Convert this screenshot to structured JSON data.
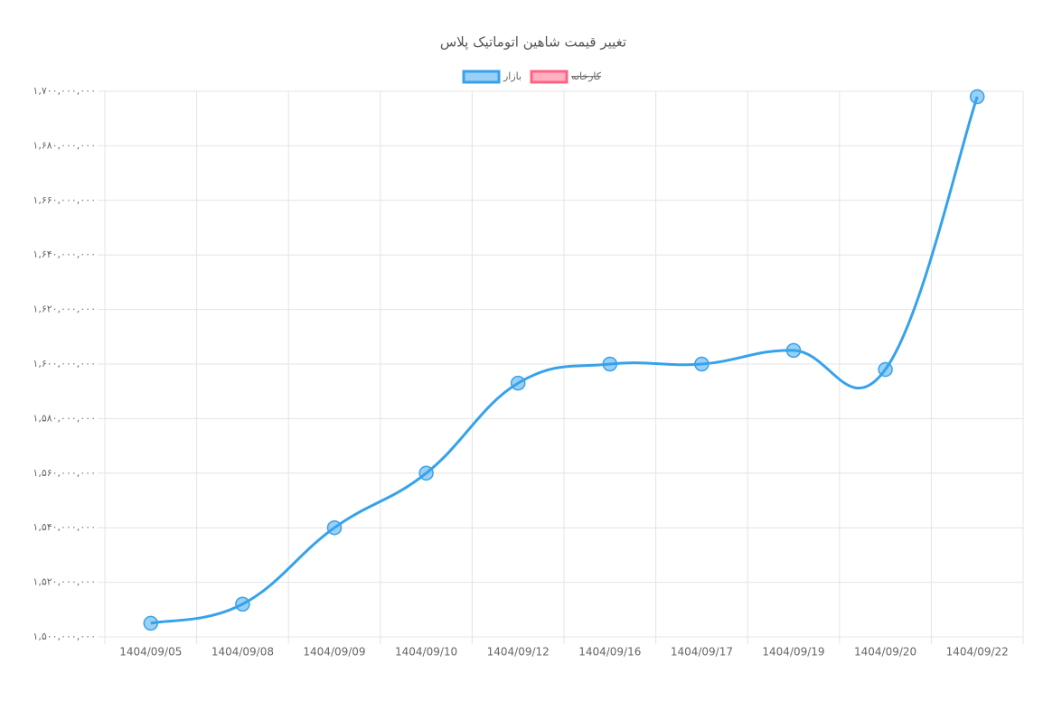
{
  "chart_data": {
    "type": "line",
    "title": "تغییر قیمت شاهین اتوماتیک پلاس",
    "categories": [
      "1404/09/05",
      "1404/09/08",
      "1404/09/09",
      "1404/09/10",
      "1404/09/12",
      "1404/09/16",
      "1404/09/17",
      "1404/09/19",
      "1404/09/20",
      "1404/09/22"
    ],
    "series": [
      {
        "name": "بازار",
        "color": "#36a2eb",
        "values": [
          1505000000,
          1512000000,
          1540000000,
          1560000000,
          1593000000,
          1600000000,
          1600000000,
          1605000000,
          1598000000,
          1698000000
        ]
      },
      {
        "name": "کارخانه",
        "color": "#ff6384",
        "hidden": true,
        "values": [
          null,
          null,
          null,
          null,
          null,
          null,
          null,
          null,
          null,
          null
        ]
      }
    ],
    "ylim": [
      1500000000,
      1700000000
    ],
    "yticks": [
      {
        "value": 1500000000,
        "label": "۱,۵۰۰,۰۰۰,۰۰۰"
      },
      {
        "value": 1520000000,
        "label": "۱,۵۲۰,۰۰۰,۰۰۰"
      },
      {
        "value": 1540000000,
        "label": "۱,۵۴۰,۰۰۰,۰۰۰"
      },
      {
        "value": 1560000000,
        "label": "۱,۵۶۰,۰۰۰,۰۰۰"
      },
      {
        "value": 1580000000,
        "label": "۱,۵۸۰,۰۰۰,۰۰۰"
      },
      {
        "value": 1600000000,
        "label": "۱,۶۰۰,۰۰۰,۰۰۰"
      },
      {
        "value": 1620000000,
        "label": "۱,۶۲۰,۰۰۰,۰۰۰"
      },
      {
        "value": 1640000000,
        "label": "۱,۶۴۰,۰۰۰,۰۰۰"
      },
      {
        "value": 1660000000,
        "label": "۱,۶۶۰,۰۰۰,۰۰۰"
      },
      {
        "value": 1680000000,
        "label": "۱,۶۸۰,۰۰۰,۰۰۰"
      },
      {
        "value": 1700000000,
        "label": "۱,۷۰۰,۰۰۰,۰۰۰"
      }
    ],
    "grid": true
  }
}
